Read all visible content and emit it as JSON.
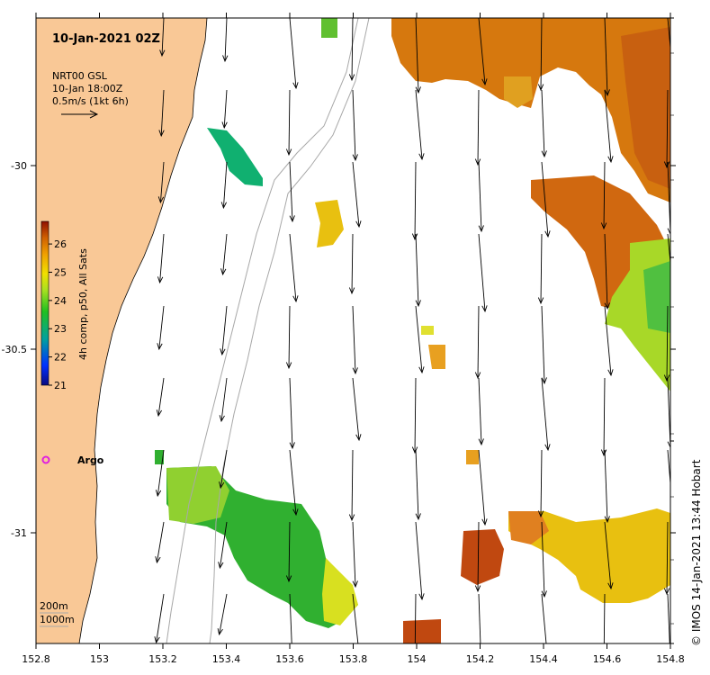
{
  "map": {
    "title": "10-Jan-2021 02Z",
    "current_legend": {
      "line1": "NRT00 GSL",
      "line2": "10-Jan 18:00Z",
      "line3": "0.5m/s (1kt 6h)"
    },
    "colorbar": {
      "label": "4h comp, p50, All Sats",
      "min": 21,
      "max": 26.8,
      "ticks": [
        "21",
        "22",
        "23",
        "24",
        "25",
        "26"
      ]
    },
    "x_ticks": [
      "152.8",
      "153",
      "153.2",
      "153.4",
      "153.6",
      "153.8",
      "154",
      "154.2",
      "154.4",
      "154.6",
      "154.8"
    ],
    "y_ticks": [
      "-30",
      "-30.5",
      "-31"
    ],
    "argo_label": "Argo",
    "depth_legend": {
      "line1": "200m",
      "line2": "1000m"
    },
    "credit": "©  IMOS 14-Jan-2021 13:44 Hobart",
    "colors": {
      "land": "#f9c896",
      "argo": "#e020e0",
      "isobath": "#a8a8a8"
    }
  }
}
